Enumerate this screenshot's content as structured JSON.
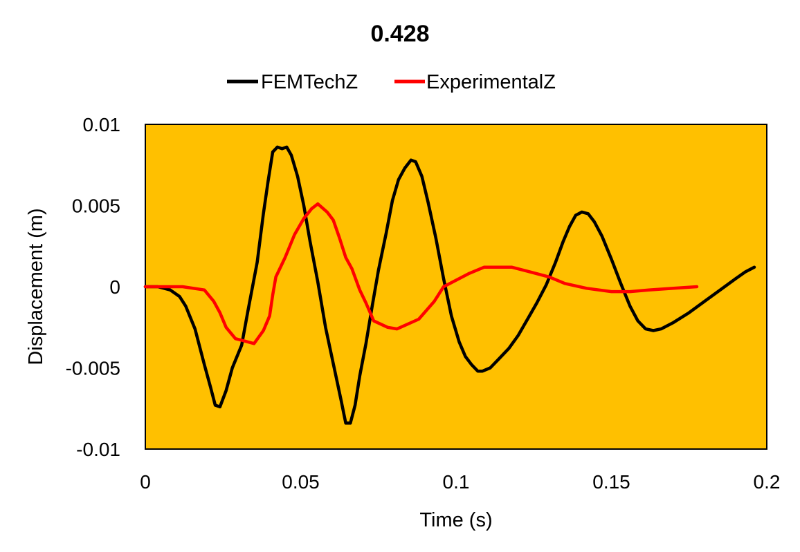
{
  "chart_data": {
    "type": "line",
    "title": "0.428",
    "xlabel": "Time (s)",
    "ylabel": "Displacement (m)",
    "xlim": [
      0,
      0.2
    ],
    "ylim": [
      -0.01,
      0.01
    ],
    "xticks": [
      0,
      0.05,
      0.1,
      0.15,
      0.2
    ],
    "xtick_labels": [
      "0",
      "0.05",
      "0.1",
      "0.15",
      "0.2"
    ],
    "yticks": [
      0.01,
      0.005,
      0,
      -0.005,
      -0.01
    ],
    "ytick_labels": [
      "0.01",
      "0.005",
      "0",
      "-0.005",
      "-0.01"
    ],
    "grid": false,
    "legend_position": "top",
    "plot_background": "#FFC000",
    "series": [
      {
        "name": "FEMTechZ",
        "color": "#000000",
        "points": [
          [
            0,
            0
          ],
          [
            0.004,
            0
          ],
          [
            0.008,
            -0.0002
          ],
          [
            0.011,
            -0.0006
          ],
          [
            0.013,
            -0.0012
          ],
          [
            0.016,
            -0.0026
          ],
          [
            0.019,
            -0.0048
          ],
          [
            0.021,
            -0.0062
          ],
          [
            0.0225,
            -0.0073
          ],
          [
            0.024,
            -0.0074
          ],
          [
            0.026,
            -0.0064
          ],
          [
            0.028,
            -0.005
          ],
          [
            0.031,
            -0.0036
          ],
          [
            0.033,
            -0.0015
          ],
          [
            0.036,
            0.0015
          ],
          [
            0.038,
            0.0045
          ],
          [
            0.0395,
            0.0065
          ],
          [
            0.041,
            0.0083
          ],
          [
            0.0425,
            0.0086
          ],
          [
            0.044,
            0.0085
          ],
          [
            0.0455,
            0.0086
          ],
          [
            0.047,
            0.0081
          ],
          [
            0.049,
            0.0068
          ],
          [
            0.051,
            0.005
          ],
          [
            0.053,
            0.0028
          ],
          [
            0.0555,
            0.0003
          ],
          [
            0.058,
            -0.0025
          ],
          [
            0.061,
            -0.0052
          ],
          [
            0.063,
            -0.007
          ],
          [
            0.0645,
            -0.0084
          ],
          [
            0.066,
            -0.0084
          ],
          [
            0.0675,
            -0.0073
          ],
          [
            0.069,
            -0.0055
          ],
          [
            0.071,
            -0.0035
          ],
          [
            0.073,
            -0.0012
          ],
          [
            0.075,
            0.001
          ],
          [
            0.0775,
            0.0033
          ],
          [
            0.0795,
            0.0053
          ],
          [
            0.0815,
            0.0066
          ],
          [
            0.0835,
            0.0073
          ],
          [
            0.0855,
            0.0078
          ],
          [
            0.087,
            0.0077
          ],
          [
            0.089,
            0.0068
          ],
          [
            0.091,
            0.0052
          ],
          [
            0.0935,
            0.003
          ],
          [
            0.096,
            0.0005
          ],
          [
            0.0985,
            -0.0018
          ],
          [
            0.101,
            -0.0034
          ],
          [
            0.103,
            -0.0043
          ],
          [
            0.105,
            -0.0048
          ],
          [
            0.107,
            -0.0052
          ],
          [
            0.1085,
            -0.0052
          ],
          [
            0.111,
            -0.005
          ],
          [
            0.114,
            -0.0044
          ],
          [
            0.117,
            -0.0038
          ],
          [
            0.12,
            -0.003
          ],
          [
            0.123,
            -0.002
          ],
          [
            0.126,
            -0.001
          ],
          [
            0.129,
            0.0001
          ],
          [
            0.132,
            0.0015
          ],
          [
            0.1345,
            0.0028
          ],
          [
            0.1365,
            0.0037
          ],
          [
            0.1385,
            0.0044
          ],
          [
            0.1405,
            0.0046
          ],
          [
            0.1425,
            0.0045
          ],
          [
            0.1445,
            0.004
          ],
          [
            0.147,
            0.0031
          ],
          [
            0.15,
            0.0017
          ],
          [
            0.153,
            0.0002
          ],
          [
            0.156,
            -0.0012
          ],
          [
            0.1585,
            -0.0021
          ],
          [
            0.161,
            -0.0026
          ],
          [
            0.1635,
            -0.0027
          ],
          [
            0.166,
            -0.0026
          ],
          [
            0.17,
            -0.0022
          ],
          [
            0.175,
            -0.0016
          ],
          [
            0.18,
            -0.0009
          ],
          [
            0.185,
            -0.0002
          ],
          [
            0.19,
            0.0005
          ],
          [
            0.193,
            0.0009
          ],
          [
            0.196,
            0.0012
          ]
        ]
      },
      {
        "name": "ExperimentalZ",
        "color": "#FF0000",
        "points": [
          [
            0,
            0
          ],
          [
            0.005,
            0
          ],
          [
            0.012,
            0
          ],
          [
            0.019,
            -0.0002
          ],
          [
            0.022,
            -0.0009
          ],
          [
            0.024,
            -0.0016
          ],
          [
            0.026,
            -0.0025
          ],
          [
            0.029,
            -0.0032
          ],
          [
            0.031,
            -0.0033
          ],
          [
            0.035,
            -0.0035
          ],
          [
            0.038,
            -0.0027
          ],
          [
            0.04,
            -0.0018
          ],
          [
            0.041,
            -0.0005
          ],
          [
            0.042,
            0.0006
          ],
          [
            0.045,
            0.0018
          ],
          [
            0.048,
            0.0032
          ],
          [
            0.051,
            0.0042
          ],
          [
            0.0535,
            0.0048
          ],
          [
            0.0555,
            0.0051
          ],
          [
            0.0585,
            0.0046
          ],
          [
            0.0605,
            0.0041
          ],
          [
            0.0625,
            0.003
          ],
          [
            0.0645,
            0.0018
          ],
          [
            0.0665,
            0.0011
          ],
          [
            0.069,
            -0.0002
          ],
          [
            0.071,
            -0.001
          ],
          [
            0.0735,
            -0.0021
          ],
          [
            0.078,
            -0.0025
          ],
          [
            0.081,
            -0.0026
          ],
          [
            0.088,
            -0.002
          ],
          [
            0.093,
            -0.0009
          ],
          [
            0.096,
            0
          ],
          [
            0.1,
            0.0004
          ],
          [
            0.104,
            0.0008
          ],
          [
            0.109,
            0.0012
          ],
          [
            0.113,
            0.0012
          ],
          [
            0.118,
            0.0012
          ],
          [
            0.124,
            0.0009
          ],
          [
            0.13,
            0.0006
          ],
          [
            0.135,
            0.0002
          ],
          [
            0.142,
            -0.0001
          ],
          [
            0.15,
            -0.0003
          ],
          [
            0.156,
            -0.0003
          ],
          [
            0.162,
            -0.0002
          ],
          [
            0.17,
            -0.0001
          ],
          [
            0.1775,
            0
          ]
        ]
      }
    ]
  }
}
